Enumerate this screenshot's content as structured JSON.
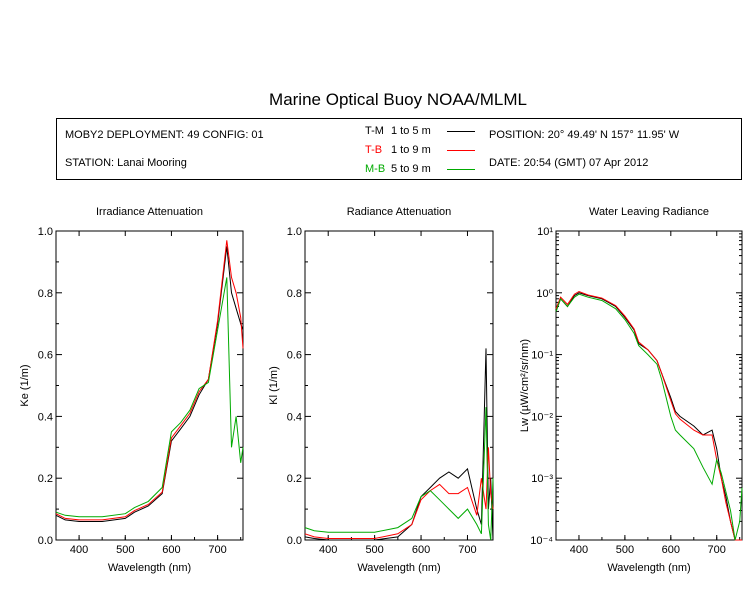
{
  "title": "Marine Optical Buoy NOAA/MLML",
  "info": {
    "deployment": "MOBY2 DEPLOYMENT: 49 CONFIG: 01",
    "station": "STATION: Lanai Mooring",
    "position": "POSITION: 20° 49.49' N   157° 11.95' W",
    "date": "DATE: 20:54 (GMT) 07 Apr 2012"
  },
  "legend": [
    {
      "code": "T-M",
      "range": "1 to 5  m",
      "color": "#000000"
    },
    {
      "code": "T-B",
      "range": "1 to 9  m",
      "color": "#ff0000"
    },
    {
      "code": "M-B",
      "range": "5 to 9  m",
      "color": "#00aa00"
    }
  ],
  "chart_data": [
    {
      "type": "line",
      "title": "Irradiance Attenuation",
      "xlabel": "Wavelength (nm)",
      "ylabel": "Ke  (1/m)",
      "xlim": [
        350,
        755
      ],
      "ylim": [
        0,
        1.0
      ],
      "xticks": [
        "400",
        "500",
        "600",
        "700"
      ],
      "yticks": [
        "0.0",
        "0.2",
        "0.4",
        "0.6",
        "0.8",
        "1.0"
      ],
      "x": [
        350,
        370,
        400,
        450,
        500,
        520,
        550,
        580,
        600,
        620,
        640,
        660,
        680,
        700,
        720,
        730,
        740,
        750,
        755
      ],
      "series": [
        {
          "name": "T-M",
          "color": "#000000",
          "values": [
            0.08,
            0.065,
            0.06,
            0.06,
            0.07,
            0.09,
            0.11,
            0.15,
            0.32,
            0.36,
            0.4,
            0.47,
            0.52,
            0.7,
            0.95,
            0.8,
            0.75,
            0.7,
            0.68
          ]
        },
        {
          "name": "T-B",
          "color": "#ff0000",
          "values": [
            0.085,
            0.07,
            0.065,
            0.065,
            0.075,
            0.095,
            0.115,
            0.155,
            0.33,
            0.37,
            0.41,
            0.48,
            0.52,
            0.71,
            0.97,
            0.85,
            0.8,
            0.72,
            0.62
          ]
        },
        {
          "name": "M-B",
          "color": "#00aa00",
          "values": [
            0.09,
            0.08,
            0.075,
            0.075,
            0.085,
            0.105,
            0.125,
            0.17,
            0.35,
            0.38,
            0.42,
            0.49,
            0.51,
            0.68,
            0.85,
            0.3,
            0.4,
            0.25,
            0.3
          ]
        }
      ]
    },
    {
      "type": "line",
      "title": "Radiance Attenuation",
      "xlabel": "Wavelength (nm)",
      "ylabel": "Kl  (1/m)",
      "xlim": [
        350,
        755
      ],
      "ylim": [
        0,
        1.0
      ],
      "xticks": [
        "400",
        "500",
        "600",
        "700"
      ],
      "yticks": [
        "0.0",
        "0.2",
        "0.4",
        "0.6",
        "0.8",
        "1.0"
      ],
      "x": [
        350,
        370,
        400,
        450,
        500,
        550,
        580,
        600,
        620,
        640,
        660,
        680,
        700,
        720,
        730,
        740,
        745,
        750,
        755
      ],
      "series": [
        {
          "name": "T-M",
          "color": "#000000",
          "values": [
            0.01,
            0.005,
            0.0,
            0.0,
            0.0,
            0.01,
            0.05,
            0.14,
            0.17,
            0.2,
            0.22,
            0.2,
            0.23,
            0.1,
            0.05,
            0.62,
            0.1,
            0.2,
            0.0
          ]
        },
        {
          "name": "T-B",
          "color": "#ff0000",
          "values": [
            0.02,
            0.01,
            0.005,
            0.005,
            0.005,
            0.02,
            0.05,
            0.13,
            0.16,
            0.18,
            0.15,
            0.15,
            0.17,
            0.08,
            0.2,
            0.1,
            0.3,
            0.15,
            0.1
          ]
        },
        {
          "name": "M-B",
          "color": "#00aa00",
          "values": [
            0.04,
            0.03,
            0.025,
            0.025,
            0.025,
            0.04,
            0.07,
            0.14,
            0.16,
            0.13,
            0.1,
            0.07,
            0.1,
            0.05,
            0.02,
            0.43,
            0.05,
            0.0,
            0.2
          ]
        }
      ]
    },
    {
      "type": "line",
      "title": "Water Leaving Radiance",
      "xlabel": "Wavelength (nm)",
      "ylabel": "Lw  (µW/cm²/sr/nm)",
      "yscale": "log",
      "xlim": [
        350,
        755
      ],
      "ylim": [
        0.0001,
        10
      ],
      "xticks": [
        "400",
        "500",
        "600",
        "700"
      ],
      "yticks": [
        "10⁻⁴",
        "10⁻³",
        "10⁻²",
        "10⁻¹",
        "10⁰",
        "10¹"
      ],
      "x": [
        350,
        360,
        375,
        390,
        400,
        420,
        450,
        480,
        500,
        520,
        530,
        550,
        570,
        580,
        600,
        610,
        620,
        650,
        670,
        690,
        700,
        710,
        720,
        730,
        740,
        750,
        755
      ],
      "series": [
        {
          "name": "T-M",
          "color": "#000000",
          "values": [
            0.5,
            0.8,
            0.6,
            0.9,
            1.0,
            0.9,
            0.8,
            0.6,
            0.4,
            0.25,
            0.15,
            0.12,
            0.08,
            0.05,
            0.02,
            0.012,
            0.01,
            0.007,
            0.005,
            0.006,
            0.003,
            0.001,
            0.0005,
            0.0002,
            0.0001,
            0.0001,
            0.0001
          ]
        },
        {
          "name": "T-B",
          "color": "#ff0000",
          "values": [
            0.55,
            0.85,
            0.65,
            0.95,
            1.05,
            0.92,
            0.82,
            0.62,
            0.42,
            0.26,
            0.16,
            0.12,
            0.08,
            0.05,
            0.018,
            0.011,
            0.009,
            0.006,
            0.005,
            0.005,
            0.002,
            0.001,
            0.0004,
            0.0002,
            0.0001,
            0.0001,
            0.0001
          ]
        },
        {
          "name": "M-B",
          "color": "#00aa00",
          "values": [
            0.5,
            0.8,
            0.6,
            0.85,
            0.95,
            0.85,
            0.75,
            0.55,
            0.37,
            0.22,
            0.14,
            0.1,
            0.07,
            0.04,
            0.01,
            0.006,
            0.005,
            0.003,
            0.0015,
            0.0008,
            0.002,
            0.0012,
            0.0006,
            0.0003,
            0.0001,
            0.0002,
            0.0007
          ]
        }
      ]
    }
  ]
}
